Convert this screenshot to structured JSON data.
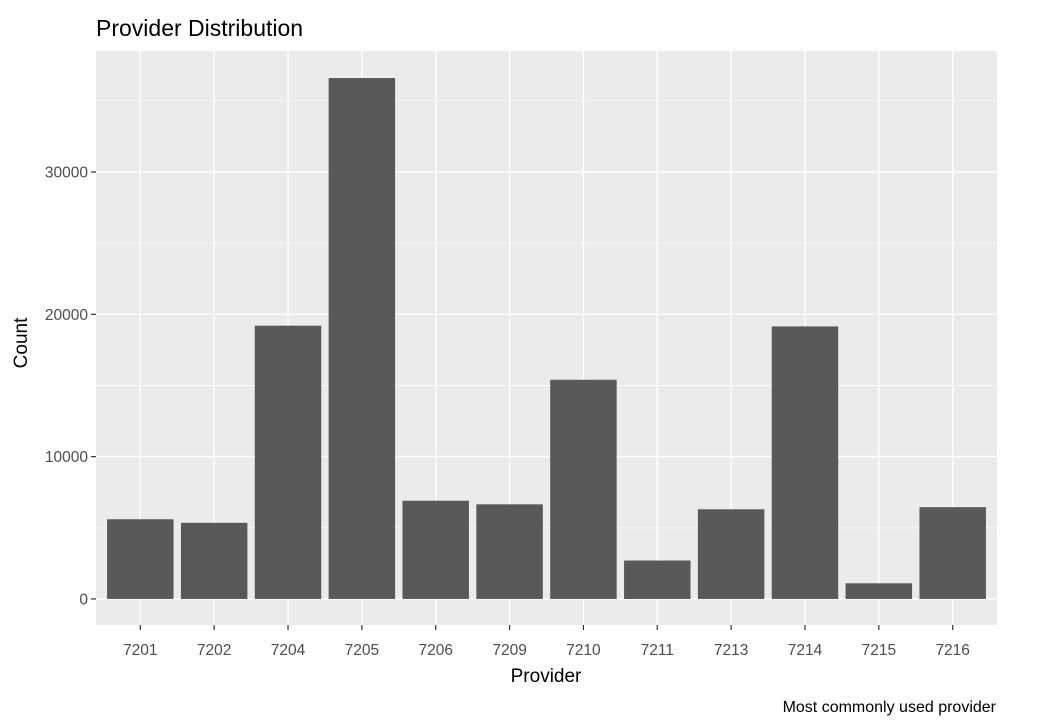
{
  "chart_data": {
    "type": "bar",
    "title": "Provider Distribution",
    "caption": "Most commonly used provider",
    "xlabel": "Provider",
    "ylabel": "Count",
    "categories": [
      "7201",
      "7202",
      "7204",
      "7205",
      "7206",
      "7209",
      "7210",
      "7211",
      "7213",
      "7214",
      "7215",
      "7216"
    ],
    "values": [
      5600,
      5350,
      19200,
      36600,
      6900,
      6650,
      15400,
      2700,
      6300,
      19150,
      1100,
      6450
    ],
    "ylim": [
      -1830,
      38500
    ],
    "yticks": [
      0,
      10000,
      20000,
      30000
    ],
    "ytick_labels": [
      "0",
      "10000",
      "20000",
      "30000"
    ],
    "grid": true,
    "legend": "none",
    "colors": {
      "bar": "#595959",
      "panel": "#ebebeb",
      "grid": "#ffffff",
      "tick": "#333333"
    }
  }
}
